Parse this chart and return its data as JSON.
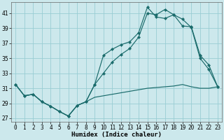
{
  "xlabel": "Humidex (Indice chaleur)",
  "bg_color": "#cce8ec",
  "grid_color": "#99cdd4",
  "line_color": "#1a6b6b",
  "xlim": [
    -0.5,
    23.5
  ],
  "ylim": [
    26.5,
    42.5
  ],
  "yticks": [
    27,
    29,
    31,
    33,
    35,
    37,
    39,
    41
  ],
  "xtick_vals": [
    0,
    1,
    2,
    3,
    4,
    5,
    6,
    7,
    8,
    9,
    10,
    11,
    12,
    13,
    14,
    15,
    16,
    17,
    18,
    19,
    20,
    21,
    22,
    23
  ],
  "line1_x": [
    0,
    1,
    2,
    3,
    4,
    5,
    6,
    7,
    8,
    9,
    10,
    11,
    12,
    13,
    14,
    15,
    16,
    17,
    18,
    19,
    20,
    21,
    22,
    23
  ],
  "line1_y": [
    31.5,
    30.0,
    30.2,
    29.2,
    28.6,
    27.9,
    27.3,
    28.7,
    29.2,
    31.5,
    35.4,
    36.2,
    36.8,
    37.2,
    38.4,
    41.8,
    40.5,
    40.3,
    40.8,
    39.3,
    39.2,
    35.4,
    34.1,
    31.2
  ],
  "line2_x": [
    0,
    1,
    2,
    3,
    4,
    5,
    6,
    7,
    8,
    9,
    10,
    11,
    12,
    13,
    14,
    15,
    16,
    17,
    18,
    19,
    20,
    21,
    22,
    23
  ],
  "line2_y": [
    31.5,
    30.0,
    30.2,
    29.2,
    28.6,
    27.9,
    27.3,
    28.7,
    29.2,
    31.5,
    33.0,
    34.5,
    35.5,
    36.3,
    37.8,
    41.0,
    40.8,
    41.5,
    40.8,
    40.2,
    39.1,
    35.0,
    33.5,
    31.2
  ],
  "line3_x": [
    0,
    1,
    2,
    3,
    4,
    5,
    6,
    7,
    8,
    9,
    10,
    11,
    12,
    13,
    14,
    15,
    16,
    17,
    18,
    19,
    20,
    21,
    22,
    23
  ],
  "line3_y": [
    31.5,
    30.0,
    30.2,
    29.2,
    28.6,
    27.9,
    27.3,
    28.7,
    29.2,
    29.8,
    30.0,
    30.2,
    30.4,
    30.6,
    30.8,
    31.0,
    31.1,
    31.2,
    31.3,
    31.5,
    31.2,
    31.0,
    31.0,
    31.2
  ],
  "axis_fontsize": 6.5,
  "tick_fontsize": 5.5
}
